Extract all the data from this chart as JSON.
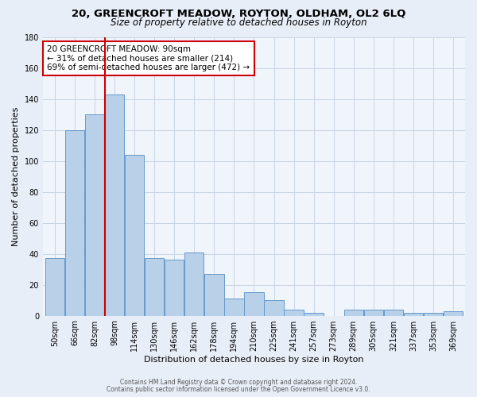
{
  "title": "20, GREENCROFT MEADOW, ROYTON, OLDHAM, OL2 6LQ",
  "subtitle": "Size of property relative to detached houses in Royton",
  "xlabel": "Distribution of detached houses by size in Royton",
  "ylabel": "Number of detached properties",
  "bar_values": [
    37,
    120,
    130,
    143,
    104,
    37,
    36,
    41,
    27,
    11,
    15,
    10,
    4,
    2,
    0,
    4,
    4,
    4,
    2,
    2,
    3
  ],
  "bin_labels": [
    "50sqm",
    "66sqm",
    "82sqm",
    "98sqm",
    "114sqm",
    "130sqm",
    "146sqm",
    "162sqm",
    "178sqm",
    "194sqm",
    "210sqm",
    "225sqm",
    "241sqm",
    "257sqm",
    "273sqm",
    "289sqm",
    "305sqm",
    "321sqm",
    "337sqm",
    "353sqm",
    "369sqm"
  ],
  "bar_color": "#b8d0e8",
  "bar_edge_color": "#6699cc",
  "vline_index": 2.5,
  "vline_color": "#cc0000",
  "ylim": [
    0,
    180
  ],
  "yticks": [
    0,
    20,
    40,
    60,
    80,
    100,
    120,
    140,
    160,
    180
  ],
  "annotation_text": "20 GREENCROFT MEADOW: 90sqm\n← 31% of detached houses are smaller (214)\n69% of semi-detached houses are larger (472) →",
  "annotation_box_color": "#ffffff",
  "annotation_box_edge": "#cc0000",
  "footer1": "Contains HM Land Registry data © Crown copyright and database right 2024.",
  "footer2": "Contains public sector information licensed under the Open Government Licence v3.0.",
  "bg_color": "#e8eef8",
  "plot_bg_color": "#f0f5fc",
  "grid_color": "#c8d4e4",
  "title_fontsize": 9.5,
  "subtitle_fontsize": 8.5,
  "tick_fontsize": 7,
  "ylabel_fontsize": 8,
  "xlabel_fontsize": 8,
  "footer_fontsize": 5.5,
  "ann_fontsize": 7.5
}
